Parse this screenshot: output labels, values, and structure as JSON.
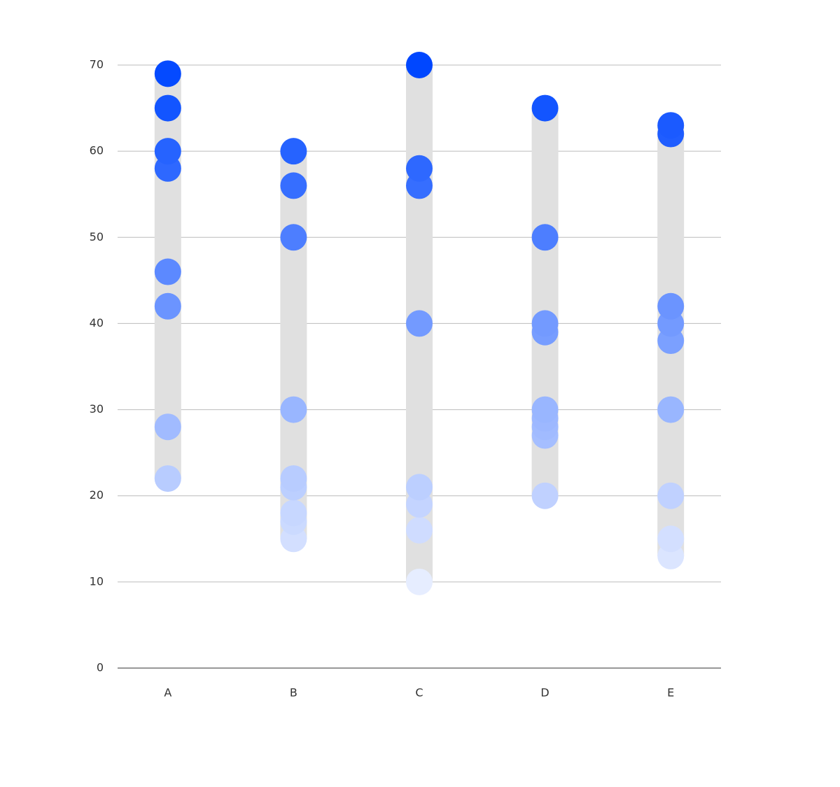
{
  "chart_data": {
    "type": "strip",
    "categories": [
      "A",
      "B",
      "C",
      "D",
      "E"
    ],
    "values": [
      [
        69,
        65,
        60,
        58,
        46,
        42,
        28,
        22
      ],
      [
        60,
        56,
        50,
        30,
        22,
        21,
        18,
        17,
        15
      ],
      [
        70,
        58,
        56,
        40,
        21,
        19,
        16,
        10
      ],
      [
        65,
        50,
        40,
        39,
        30,
        29,
        28,
        27,
        20
      ],
      [
        63,
        62,
        42,
        40,
        38,
        30,
        20,
        15,
        13
      ]
    ],
    "color_scale": {
      "low": "#e6edff",
      "high": "#0047ff"
    },
    "range_color": "#e0e0e0",
    "ylim": [
      0,
      70
    ],
    "yticks": [
      0,
      10,
      20,
      30,
      40,
      50,
      60,
      70
    ],
    "grid": true
  }
}
